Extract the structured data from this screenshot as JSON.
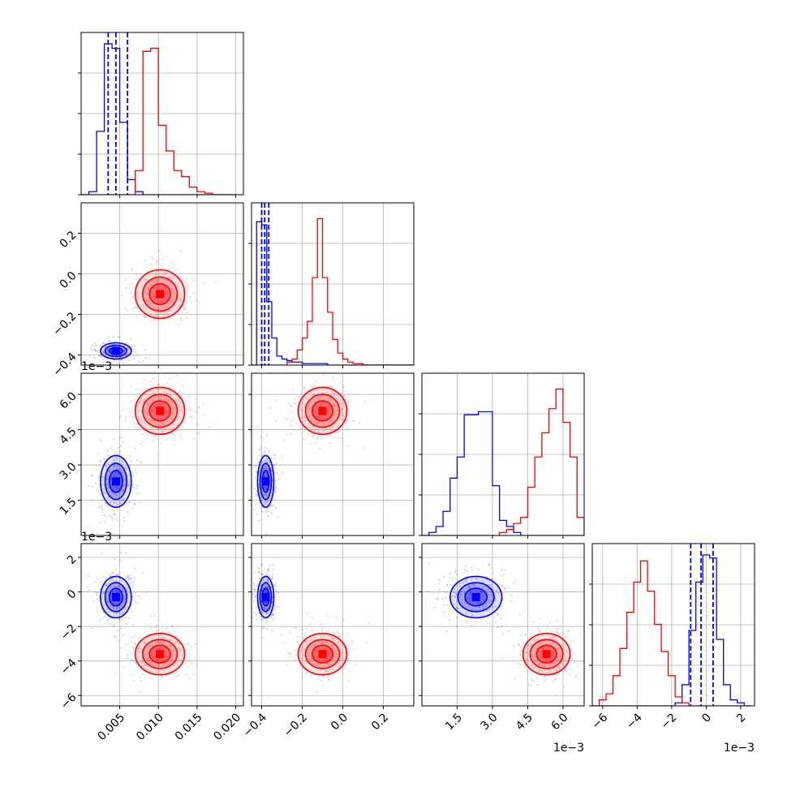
{
  "colors": {
    "series_a": "#0000ff",
    "series_b": "#ff0000",
    "grid": "#b0b0b0",
    "frame": "#000000"
  },
  "chart_data": {
    "type": "corner-plot",
    "grid": true,
    "params": [
      {
        "lim": [
          0.0,
          0.021
        ],
        "ticks": [
          0.005,
          0.01,
          0.015,
          0.02
        ],
        "tick_labels": [
          "0.005",
          "0.010",
          "0.015",
          "0.020"
        ],
        "offset_label": "",
        "series_a": {
          "mean": 0.0045,
          "sd": 0.001
        },
        "series_b": {
          "mean": 0.0102,
          "sd": 0.0016
        },
        "hist_edges": [
          0.0,
          0.001,
          0.002,
          0.003,
          0.004,
          0.005,
          0.006,
          0.007,
          0.008,
          0.009,
          0.01,
          0.011,
          0.012,
          0.013,
          0.014,
          0.015,
          0.016,
          0.017,
          0.018,
          0.019,
          0.02
        ],
        "hist_a": [
          0.0,
          0.02,
          0.42,
          1.0,
          0.97,
          0.48,
          0.1,
          0.02,
          0.0,
          0.0,
          0.0,
          0.0,
          0.0,
          0.0,
          0.0,
          0.0,
          0.0,
          0.0,
          0.0,
          0.0
        ],
        "hist_b": [
          0.0,
          0.0,
          0.0,
          0.0,
          0.0,
          0.0,
          0.0,
          0.16,
          0.95,
          0.97,
          0.46,
          0.29,
          0.16,
          0.12,
          0.05,
          0.02,
          0.01,
          0.0,
          0.0,
          0.0
        ],
        "quantiles_a": [
          0.0035,
          0.0045,
          0.006
        ]
      },
      {
        "lim": [
          -0.45,
          0.35
        ],
        "ticks": [
          -0.4,
          -0.2,
          0.0,
          0.2
        ],
        "tick_labels": [
          "−0.4",
          "−0.2",
          "0.0",
          "0.2"
        ],
        "offset_label": "",
        "series_a": {
          "mean": -0.38,
          "sd": 0.02
        },
        "series_b": {
          "mean": -0.1,
          "sd": 0.06
        },
        "hist_edges": [
          -0.45,
          -0.425,
          -0.4,
          -0.375,
          -0.35,
          -0.325,
          -0.3,
          -0.275,
          -0.25,
          -0.225,
          -0.2,
          -0.175,
          -0.15,
          -0.125,
          -0.1,
          -0.075,
          -0.05,
          -0.025,
          0.0,
          0.025,
          0.05,
          0.075,
          0.1,
          0.125,
          0.15,
          0.175,
          0.2,
          0.225,
          0.25,
          0.275,
          0.3,
          0.325,
          0.35
        ],
        "hist_a": [
          0.0,
          0.95,
          0.93,
          0.42,
          0.18,
          0.06,
          0.04,
          0.03,
          0.02,
          0.02,
          0.01,
          0.01,
          0.01,
          0.01,
          0.01,
          0.0,
          0.0,
          0.0,
          0.0,
          0.0,
          0.0,
          0.0,
          0.0,
          0.0,
          0.0,
          0.0,
          0.0,
          0.0,
          0.0,
          0.0,
          0.0,
          0.0
        ],
        "hist_b": [
          0.0,
          0.0,
          0.0,
          0.0,
          0.0,
          0.0,
          0.0,
          0.02,
          0.04,
          0.1,
          0.18,
          0.29,
          0.58,
          0.97,
          0.58,
          0.35,
          0.17,
          0.08,
          0.04,
          0.02,
          0.01,
          0.01,
          0.0,
          0.0,
          0.0,
          0.0,
          0.0,
          0.0,
          0.0,
          0.0,
          0.0,
          0.0
        ],
        "quantiles_a": [
          -0.4,
          -0.385,
          -0.365
        ]
      },
      {
        "lim": [
          0.0,
          0.0069
        ],
        "ticks": [
          0.0015,
          0.003,
          0.0045,
          0.006
        ],
        "tick_labels": [
          "1.5",
          "3.0",
          "4.5",
          "6.0"
        ],
        "offset_label": "1e−3",
        "series_a": {
          "mean": 0.0023,
          "sd": 0.00055
        },
        "series_b": {
          "mean": 0.0053,
          "sd": 0.0005
        },
        "hist_edges": [
          0.0,
          0.0003,
          0.0006,
          0.0009,
          0.0012,
          0.0015,
          0.0018,
          0.0021,
          0.0024,
          0.0027,
          0.003,
          0.0033,
          0.0036,
          0.0039,
          0.0042,
          0.0045,
          0.0048,
          0.0051,
          0.0054,
          0.0057,
          0.006,
          0.0063,
          0.0066,
          0.0069
        ],
        "hist_a": [
          0.0,
          0.02,
          0.06,
          0.16,
          0.38,
          0.52,
          0.8,
          0.8,
          0.82,
          0.82,
          0.33,
          0.1,
          0.06,
          0.02,
          0.0,
          0.0,
          0.0,
          0.0,
          0.0,
          0.0,
          0.0,
          0.0,
          0.0
        ],
        "hist_b": [
          0.0,
          0.0,
          0.0,
          0.0,
          0.0,
          0.0,
          0.0,
          0.0,
          0.0,
          0.0,
          0.0,
          0.02,
          0.04,
          0.08,
          0.12,
          0.32,
          0.52,
          0.68,
          0.84,
          0.97,
          0.75,
          0.52,
          0.12
        ]
      },
      {
        "lim": [
          -0.0066,
          0.0028
        ],
        "ticks": [
          -0.006,
          -0.004,
          -0.002,
          0.0,
          0.002
        ],
        "tick_labels": [
          "−6",
          "−4",
          "−2",
          "0",
          "2"
        ],
        "offset_label": "1e−3",
        "series_a": {
          "mean": -0.0003,
          "sd": 0.0006
        },
        "series_b": {
          "mean": -0.0036,
          "sd": 0.0006
        },
        "hist_edges": [
          -0.0066,
          -0.0062,
          -0.0058,
          -0.0054,
          -0.005,
          -0.0046,
          -0.0042,
          -0.0038,
          -0.0034,
          -0.003,
          -0.0026,
          -0.0022,
          -0.0018,
          -0.0014,
          -0.001,
          -0.0006,
          -0.0002,
          0.0002,
          0.0006,
          0.001,
          0.0014,
          0.0018,
          0.0022,
          0.0026
        ],
        "hist_a": [
          0.0,
          0.0,
          0.0,
          0.0,
          0.0,
          0.0,
          0.0,
          0.0,
          0.0,
          0.0,
          0.0,
          0.0,
          0.02,
          0.14,
          0.5,
          0.82,
          1.0,
          0.98,
          0.44,
          0.14,
          0.04,
          0.02,
          0.0
        ],
        "hist_b": [
          0.0,
          0.04,
          0.08,
          0.2,
          0.38,
          0.62,
          0.82,
          0.96,
          0.76,
          0.54,
          0.36,
          0.2,
          0.06,
          0.02,
          0.0,
          0.0,
          0.0,
          0.0,
          0.0,
          0.0,
          0.0,
          0.0,
          0.0
        ],
        "quantiles_a": [
          -0.0009,
          -0.0003,
          0.0004
        ]
      }
    ],
    "scatter": {
      "a": [
        [
          0.0045,
          -0.38
        ],
        [
          0.0035,
          -0.39
        ],
        [
          0.005,
          -0.37
        ],
        [
          0.0042,
          -0.4
        ],
        [
          0.0055,
          -0.36
        ],
        [
          0.0038,
          -0.38
        ],
        [
          0.006,
          -0.33
        ],
        [
          0.0065,
          -0.3
        ],
        [
          0.007,
          -0.27
        ],
        [
          0.0075,
          -0.22
        ],
        [
          0.0048,
          -0.41
        ],
        [
          0.003,
          -0.38
        ],
        [
          0.0052,
          -0.34
        ],
        [
          0.0068,
          -0.25
        ],
        [
          0.008,
          -0.2
        ],
        [
          0.0028,
          -0.4
        ],
        [
          0.0058,
          -0.39
        ],
        [
          0.004,
          -0.36
        ],
        [
          0.0062,
          -0.29
        ],
        [
          0.0073,
          -0.18
        ]
      ],
      "b": [
        [
          0.01,
          -0.08
        ],
        [
          0.009,
          -0.05
        ],
        [
          0.011,
          -0.12
        ],
        [
          0.012,
          -0.14
        ],
        [
          0.013,
          -0.16
        ],
        [
          0.0095,
          -0.02
        ],
        [
          0.0085,
          0.05
        ],
        [
          0.014,
          -0.18
        ],
        [
          0.0105,
          -0.1
        ],
        [
          0.0115,
          -0.11
        ],
        [
          0.015,
          -0.15
        ],
        [
          0.0088,
          0.1
        ],
        [
          0.016,
          -0.2
        ],
        [
          0.0092,
          -0.06
        ],
        [
          0.0125,
          -0.13
        ],
        [
          0.0078,
          0.12
        ],
        [
          0.0135,
          -0.19
        ],
        [
          0.0108,
          -0.04
        ],
        [
          0.017,
          -0.17
        ],
        [
          0.0082,
          0.18
        ]
      ]
    }
  }
}
